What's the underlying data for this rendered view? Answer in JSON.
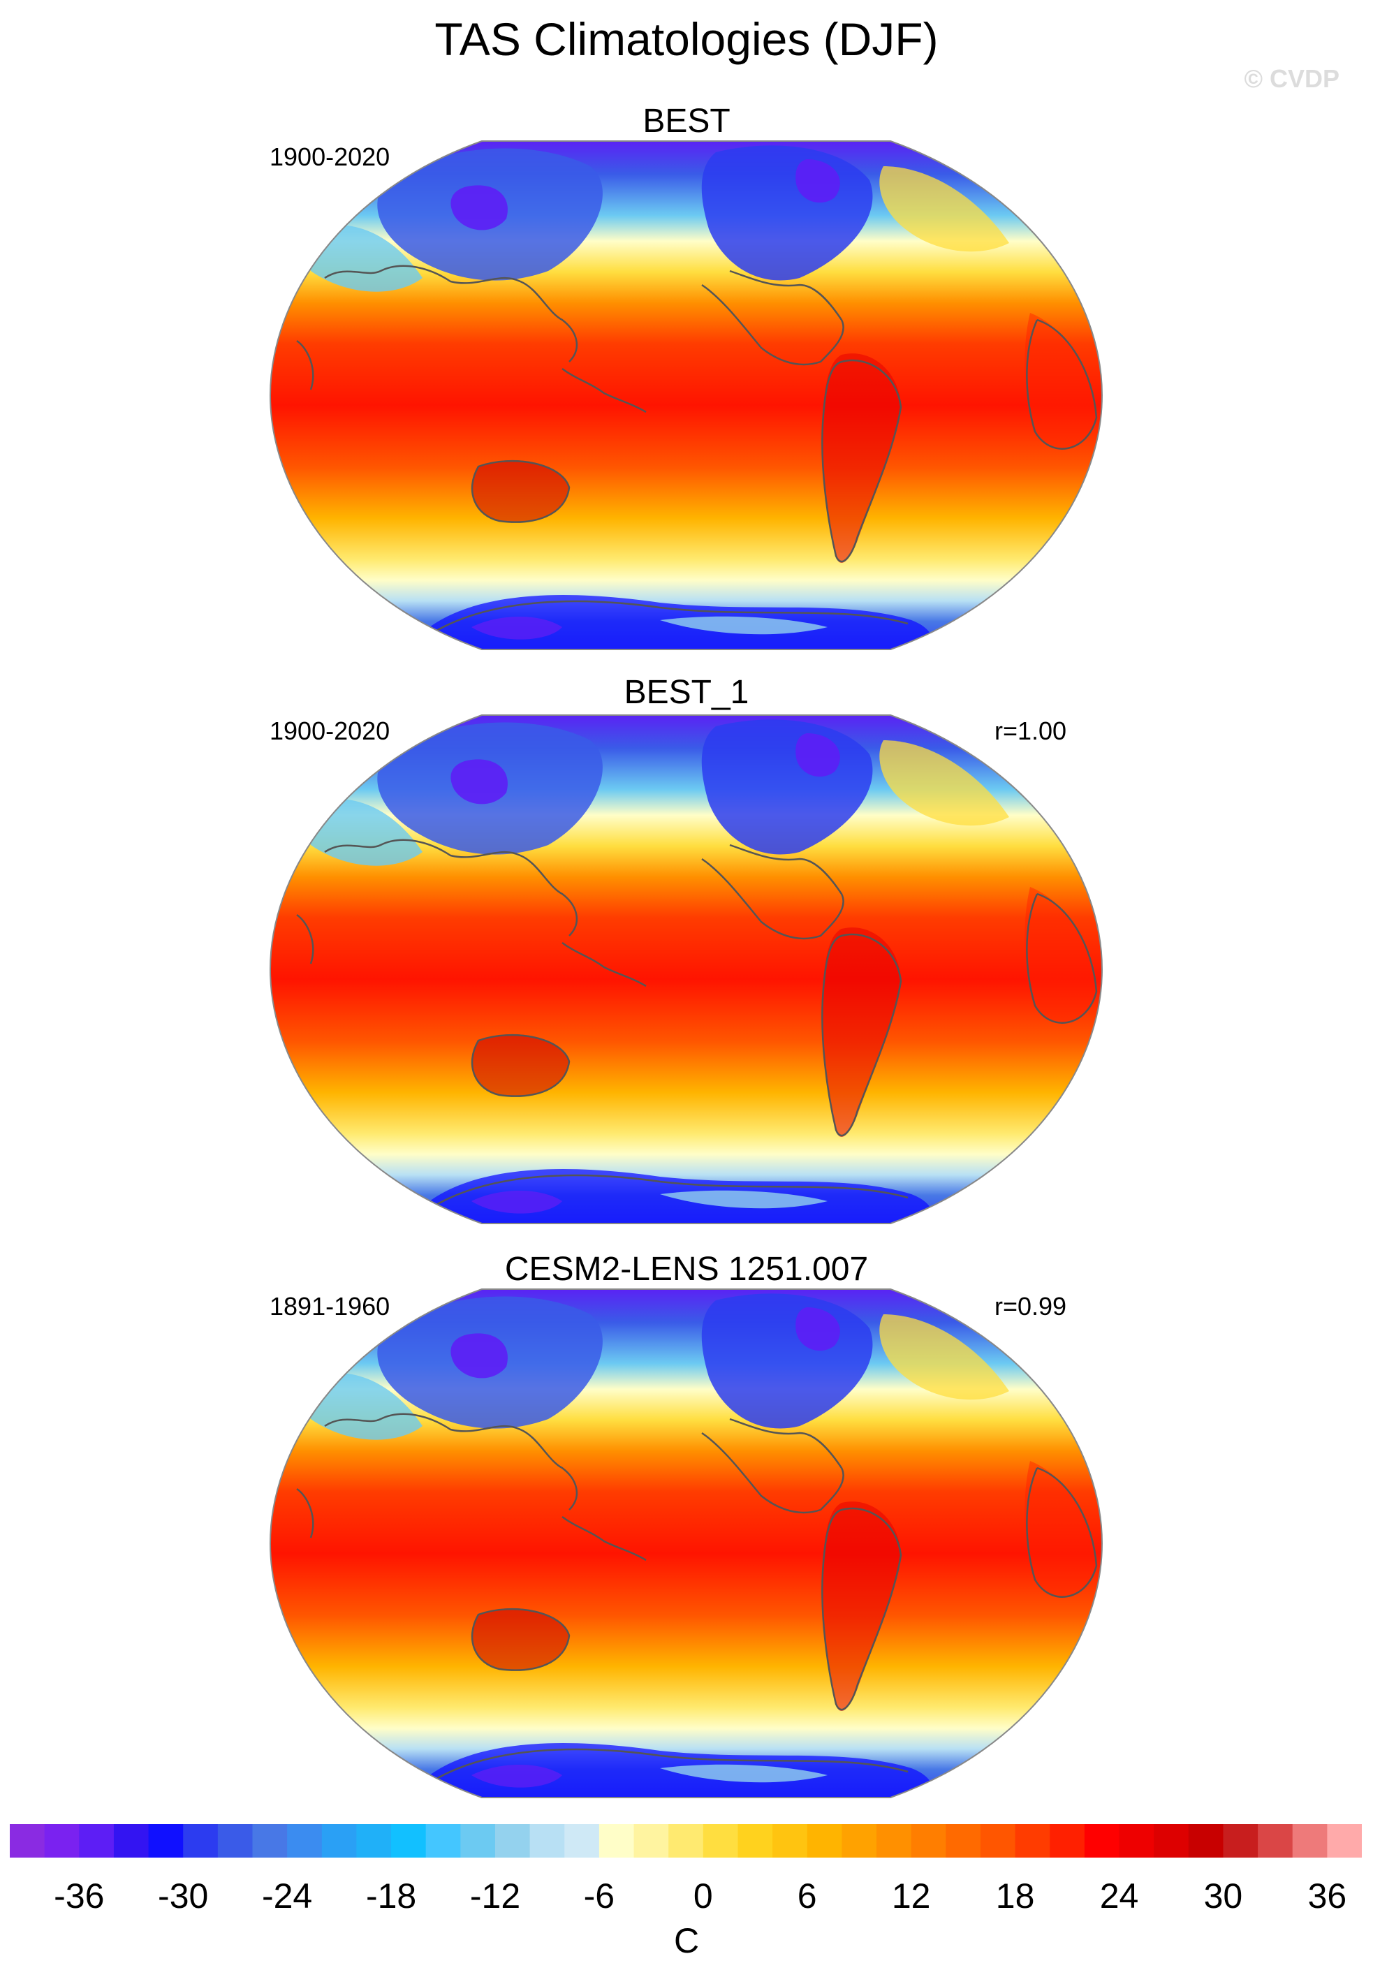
{
  "title": "TAS Climatologies (DJF)",
  "watermark": "© CVDP",
  "panels": [
    {
      "title": "BEST",
      "period": "1900-2020",
      "corr": ""
    },
    {
      "title": "BEST_1",
      "period": "1900-2020",
      "corr": "r=1.00"
    },
    {
      "title": "CESM2-LENS 1251.007",
      "period": "1891-1960",
      "corr": "r=0.99"
    }
  ],
  "colorbar": {
    "units": "C",
    "tick_labels": [
      "-36",
      "-30",
      "-24",
      "-18",
      "-12",
      "-6",
      "0",
      "6",
      "12",
      "18",
      "24",
      "30",
      "36"
    ],
    "colors": [
      "#8a2be2",
      "#7a22f0",
      "#5d1ef5",
      "#3314f2",
      "#1010ff",
      "#2c3cf0",
      "#3a5be8",
      "#4878e6",
      "#3b8cf0",
      "#2aa0f5",
      "#20b0f8",
      "#12c0ff",
      "#44c6ff",
      "#6ccaf2",
      "#94d2ee",
      "#b8e0f4",
      "#cfe9f6",
      "#fffec8",
      "#fff4a0",
      "#ffea70",
      "#ffde40",
      "#ffd21e",
      "#ffc410",
      "#ffb400",
      "#ffa200",
      "#ff9000",
      "#ff7e00",
      "#ff6a00",
      "#ff5600",
      "#ff3c00",
      "#ff2000",
      "#ff0000",
      "#ee0000",
      "#dd0000",
      "#c80000",
      "#c81e1e",
      "#da4646",
      "#ee7a7a",
      "#ffaaaa"
    ]
  }
}
